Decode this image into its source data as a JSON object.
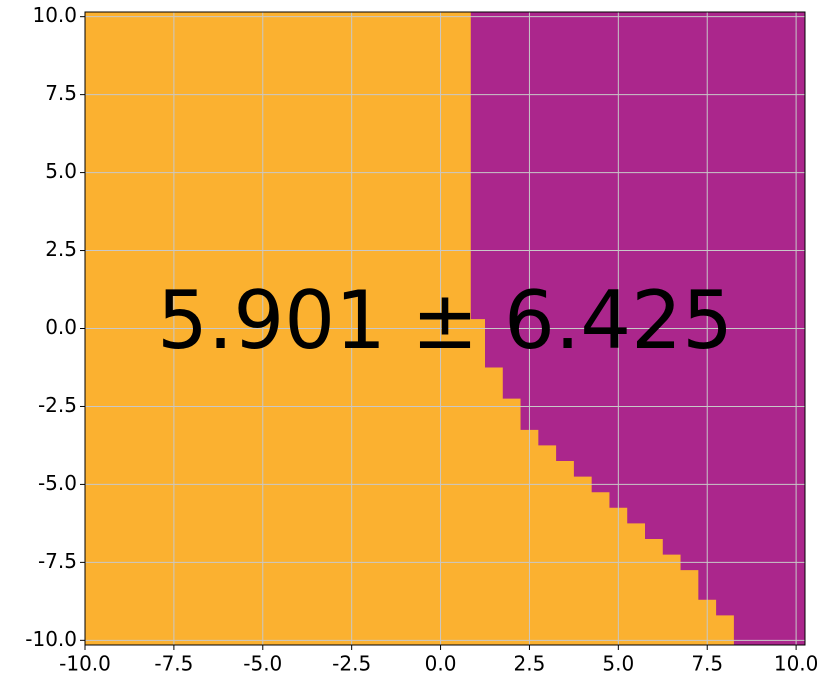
{
  "chart_data": {
    "type": "region",
    "annotation": "5.901 ± 6.425",
    "background_color": "#fbb130",
    "regions": [
      {
        "color": "#ab268c",
        "x": [
          0.85,
          10.25,
          10.25,
          8.25,
          8.25,
          7.75,
          7.75,
          7.25,
          7.25,
          6.75,
          6.75,
          6.25,
          6.25,
          5.75,
          5.75,
          5.25,
          5.25,
          4.75,
          4.75,
          4.25,
          4.25,
          3.75,
          3.75,
          3.25,
          3.25,
          2.75,
          2.75,
          2.25,
          2.25,
          1.75,
          1.75,
          1.25,
          1.25,
          0.85
        ],
        "y": [
          10.15,
          10.15,
          -10.15,
          -10.15,
          -9.2,
          -9.2,
          -8.7,
          -8.7,
          -7.75,
          -7.75,
          -7.25,
          -7.25,
          -6.75,
          -6.75,
          -6.25,
          -6.25,
          -5.75,
          -5.75,
          -5.25,
          -5.25,
          -4.75,
          -4.75,
          -4.25,
          -4.25,
          -3.75,
          -3.75,
          -3.25,
          -3.25,
          -2.25,
          -2.25,
          -1.25,
          -1.25,
          0.3,
          0.3
        ]
      }
    ],
    "xlim": [
      -10.0,
      10.25
    ],
    "ylim": [
      -10.15,
      10.15
    ],
    "xticks": [
      {
        "value": -10,
        "label": "-10.0"
      },
      {
        "value": -7.5,
        "label": "-7.5"
      },
      {
        "value": -5,
        "label": "-5.0"
      },
      {
        "value": -2.5,
        "label": "-2.5"
      },
      {
        "value": 0,
        "label": "0.0"
      },
      {
        "value": 2.5,
        "label": "2.5"
      },
      {
        "value": 5,
        "label": "5.0"
      },
      {
        "value": 7.5,
        "label": "7.5"
      },
      {
        "value": 10,
        "label": "10.0"
      }
    ],
    "yticks": [
      {
        "value": -10,
        "label": "-10.0"
      },
      {
        "value": -7.5,
        "label": "-7.5"
      },
      {
        "value": -5,
        "label": "-5.0"
      },
      {
        "value": -2.5,
        "label": "-2.5"
      },
      {
        "value": 0,
        "label": "0.0"
      },
      {
        "value": 2.5,
        "label": "2.5"
      },
      {
        "value": 5,
        "label": "5.0"
      },
      {
        "value": 7.5,
        "label": "7.5"
      },
      {
        "value": 10,
        "label": "10.0"
      }
    ],
    "grid": true
  }
}
